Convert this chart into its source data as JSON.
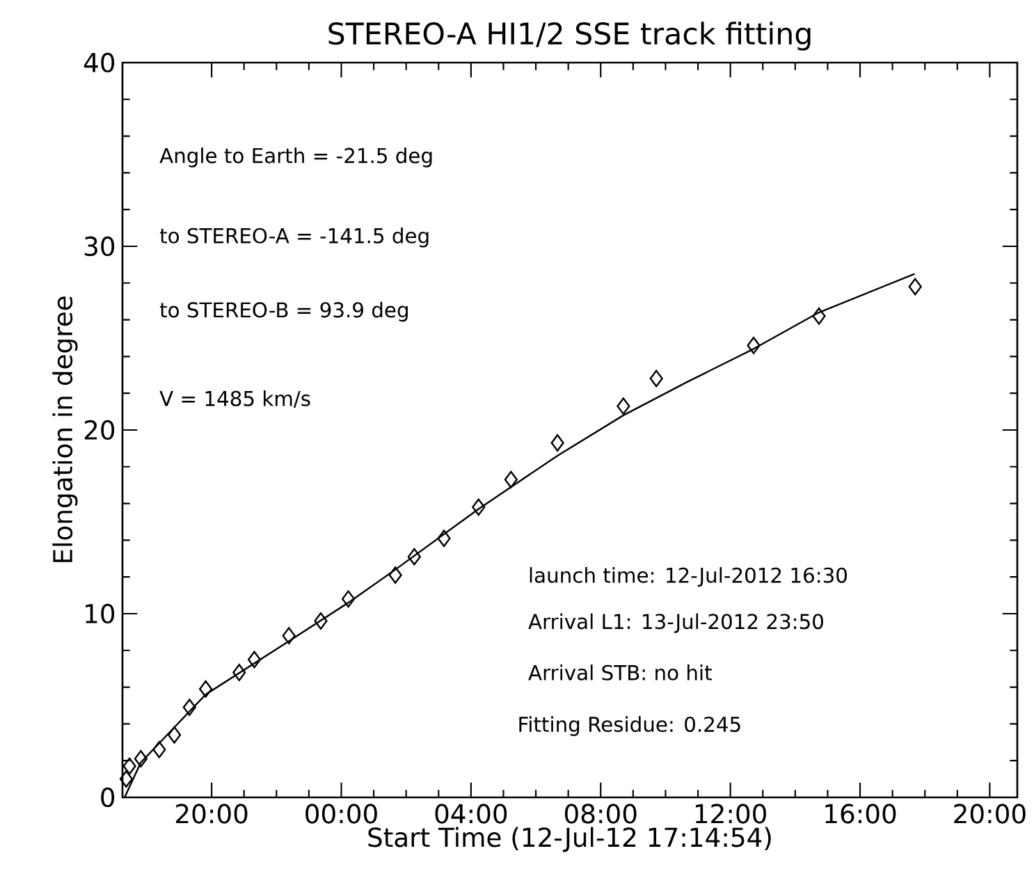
{
  "chart_data": {
    "type": "scatter",
    "title": "STEREO-A HI1/2 SSE track fitting",
    "xlabel": "Start Time (12-Jul-12 17:14:54)",
    "ylabel": "Elongation in degree",
    "xlim": [
      "2012-07-12T17:15",
      "2012-07-13T20:51"
    ],
    "ylim": [
      0,
      40
    ],
    "xticks": [
      {
        "value": "2012-07-12T20:00",
        "label": "20:00"
      },
      {
        "value": "2012-07-13T00:00",
        "label": "00:00"
      },
      {
        "value": "2012-07-13T04:00",
        "label": "04:00"
      },
      {
        "value": "2012-07-13T08:00",
        "label": "08:00"
      },
      {
        "value": "2012-07-13T12:00",
        "label": "12:00"
      },
      {
        "value": "2012-07-13T16:00",
        "label": "16:00"
      },
      {
        "value": "2012-07-13T20:00",
        "label": "20:00"
      }
    ],
    "yticks": [
      0,
      10,
      20,
      30,
      40
    ],
    "grid": false,
    "annotations": [
      "Angle to Earth = -21.5 deg",
      "to STEREO-A = -141.5 deg",
      "to STEREO-B = 93.9 deg",
      "V = 1485 km/s",
      "launch time: 12-Jul-2012 16:30",
      "Arrival L1: 13-Jul-2012 23:50",
      "Arrival STB: no hit",
      "Fitting Residue: 0.245"
    ],
    "series": [
      {
        "marker": "diamond",
        "color": "#000000",
        "x": [
          "2012-07-12T17:22",
          "2012-07-12T17:28",
          "2012-07-12T17:49",
          "2012-07-12T18:23",
          "2012-07-12T18:51",
          "2012-07-12T19:19",
          "2012-07-12T19:49",
          "2012-07-12T20:51",
          "2012-07-12T21:19",
          "2012-07-12T22:23",
          "2012-07-12T23:22",
          "2012-07-13T00:13",
          "2012-07-13T01:40",
          "2012-07-13T02:15",
          "2012-07-13T03:10",
          "2012-07-13T04:14",
          "2012-07-13T05:14",
          "2012-07-13T06:40",
          "2012-07-13T08:42",
          "2012-07-13T09:43",
          "2012-07-13T12:43",
          "2012-07-13T14:44",
          "2012-07-13T17:42"
        ],
        "values": [
          1.0,
          1.7,
          2.1,
          2.6,
          3.4,
          4.9,
          5.9,
          6.8,
          7.5,
          8.8,
          9.6,
          10.8,
          12.1,
          13.1,
          14.1,
          15.8,
          17.3,
          19.3,
          21.3,
          22.8,
          24.6,
          26.2,
          27.8
        ]
      },
      {
        "type": "line",
        "marker": "none",
        "line_style": "solid",
        "color": "#000000",
        "x": [
          "2012-07-12T17:19",
          "2012-07-12T17:49",
          "2012-07-12T19:49",
          "2012-07-12T22:23",
          "2012-07-13T00:13",
          "2012-07-13T01:40",
          "2012-07-13T04:14",
          "2012-07-13T06:40",
          "2012-07-13T08:42",
          "2012-07-13T10:39",
          "2012-07-13T12:42",
          "2012-07-13T14:44",
          "2012-07-13T17:41"
        ],
        "values": [
          0.0,
          1.9,
          5.6,
          8.5,
          10.6,
          12.4,
          15.7,
          18.6,
          20.8,
          22.6,
          24.4,
          26.4,
          28.5
        ]
      }
    ]
  }
}
